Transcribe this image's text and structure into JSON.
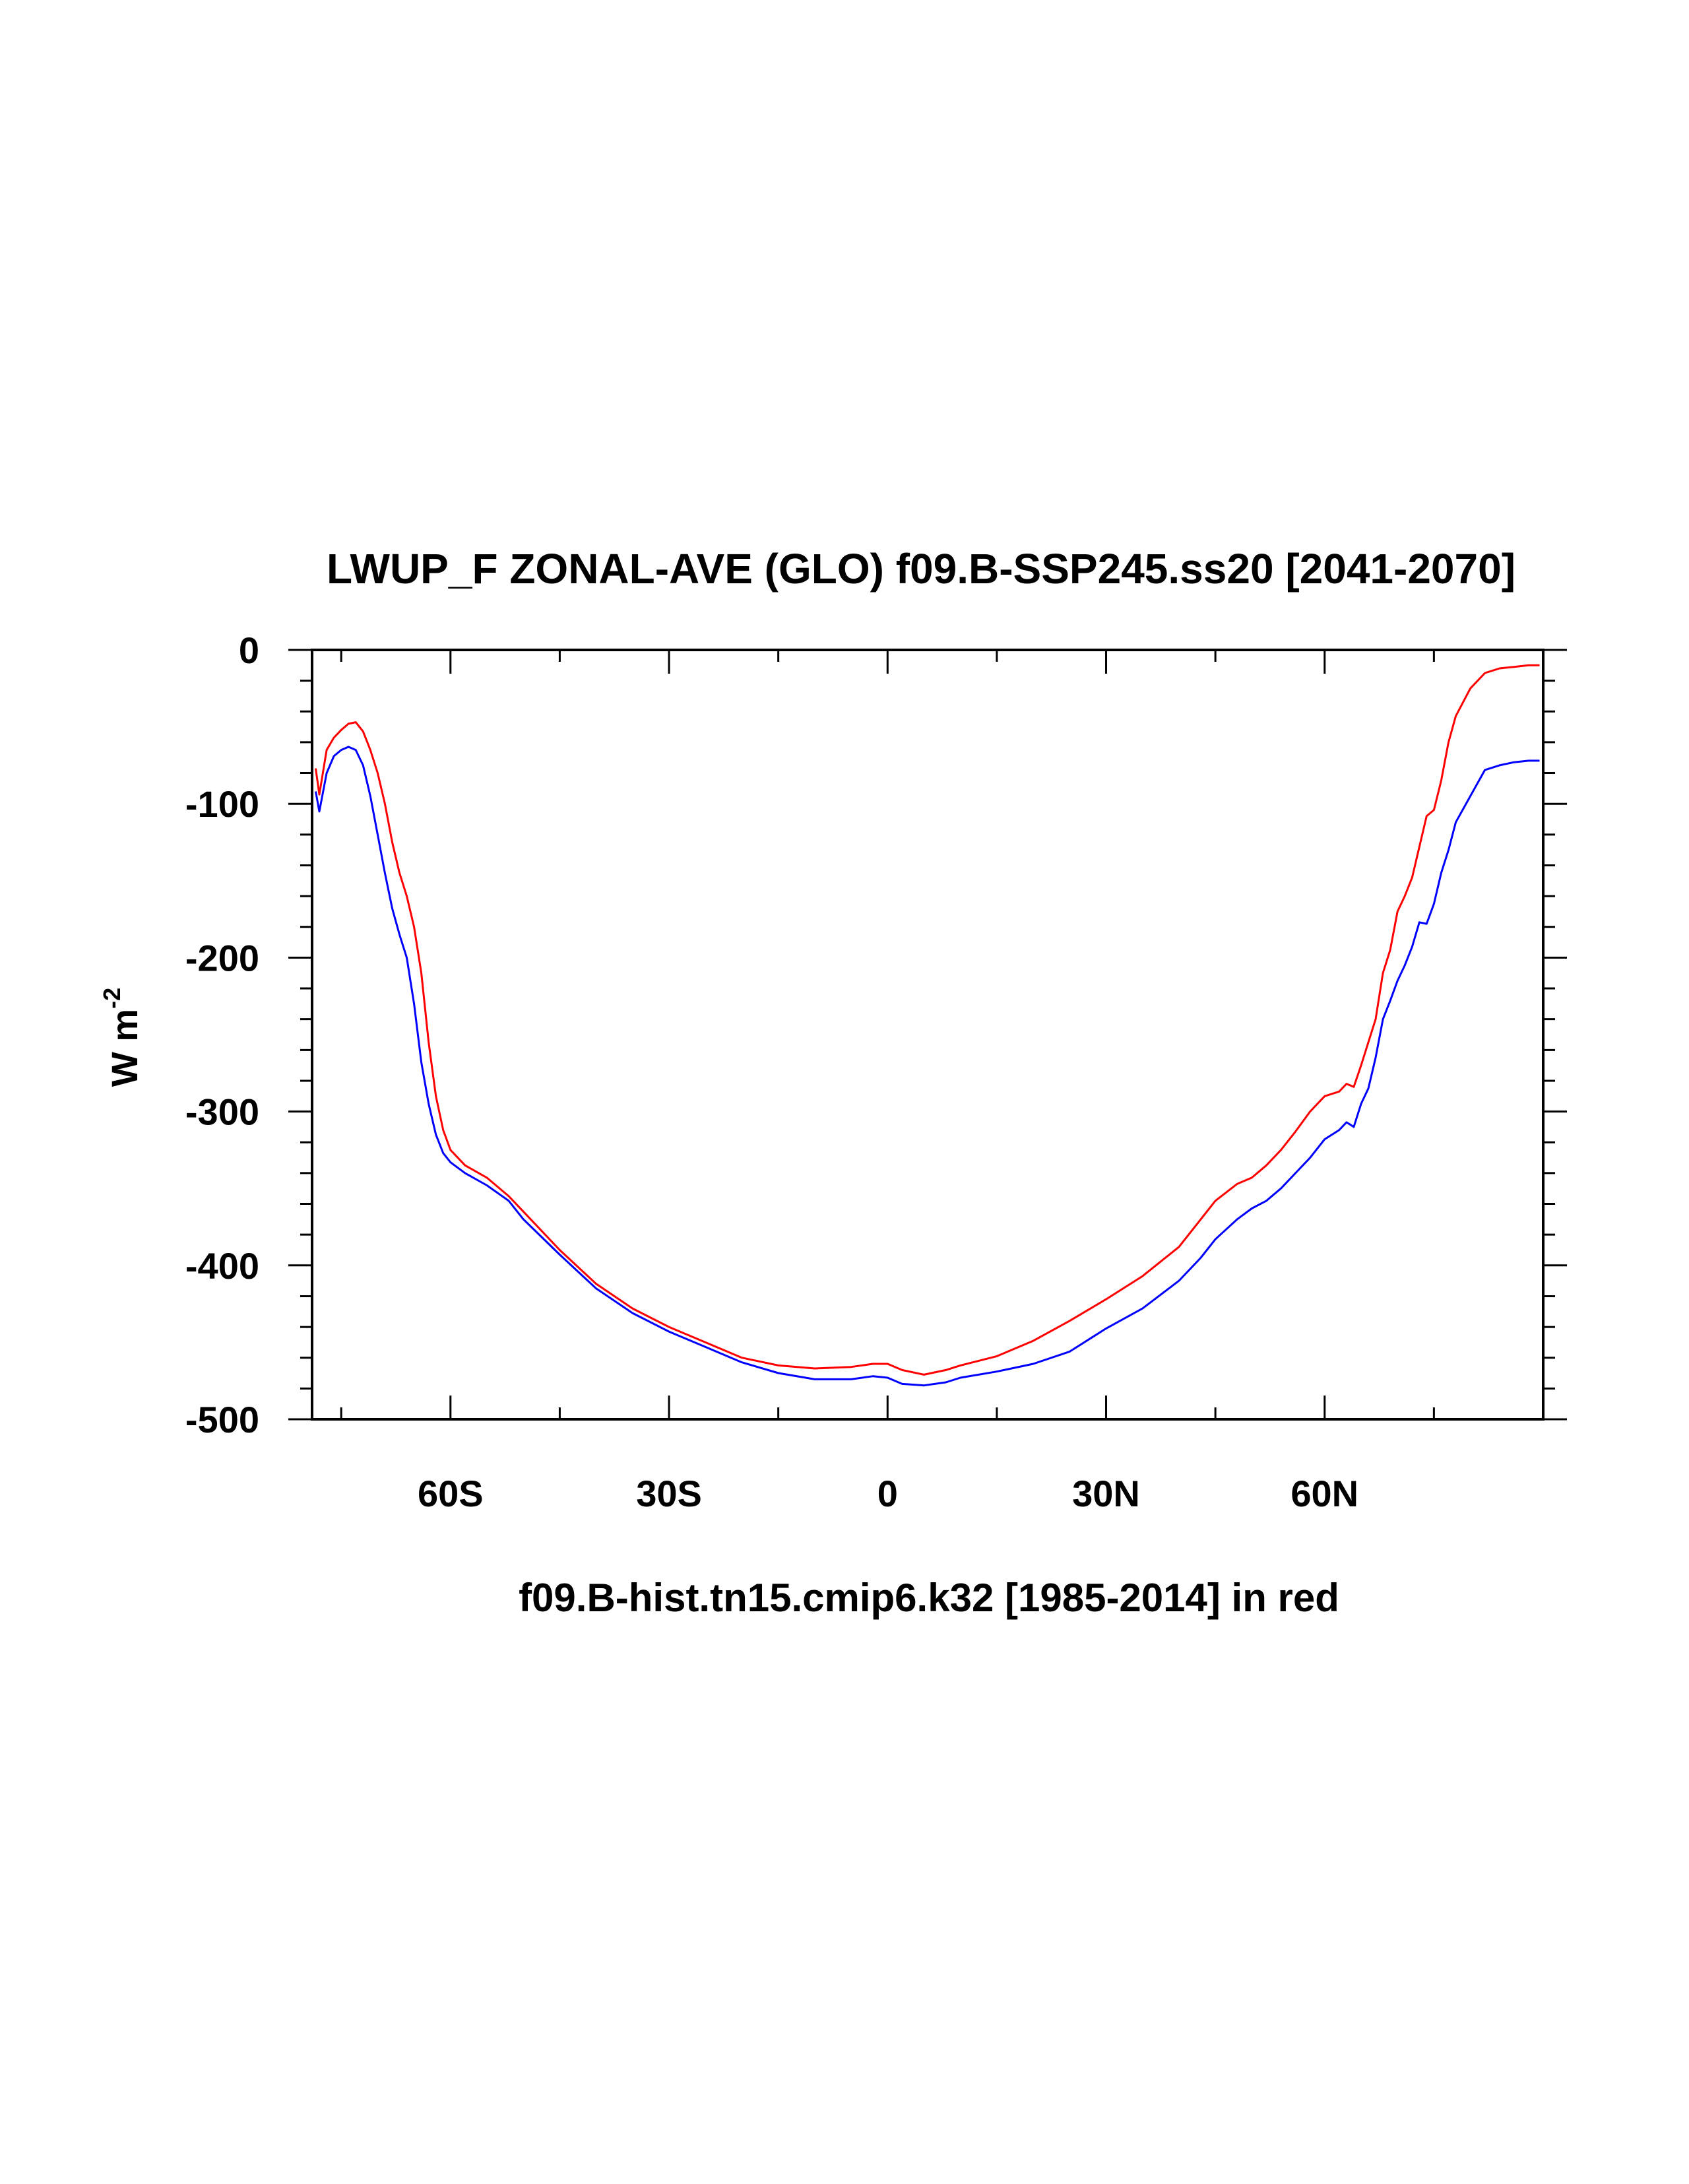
{
  "chart_data": {
    "type": "line",
    "title": "LWUP_F ZONAL-AVE (GLO) f09.B-SSP245.ss20 [2041-2070]",
    "xlabel": "f09.B-hist.tn15.cmip6.k32 [1985-2014] in red",
    "ylabel": "W m",
    "ylabel_superscript": "-2",
    "xlim": [
      -79,
      90
    ],
    "ylim": [
      -500,
      0
    ],
    "x_ticks": [
      {
        "value": -60,
        "label": "60S"
      },
      {
        "value": -30,
        "label": "30S"
      },
      {
        "value": 0,
        "label": "0"
      },
      {
        "value": 30,
        "label": "30N"
      },
      {
        "value": 60,
        "label": "60N"
      }
    ],
    "y_ticks": [
      {
        "value": 0,
        "label": "0"
      },
      {
        "value": -100,
        "label": "-100"
      },
      {
        "value": -200,
        "label": "-200"
      },
      {
        "value": -300,
        "label": "-300"
      },
      {
        "value": -400,
        "label": "-400"
      },
      {
        "value": -500,
        "label": "-500"
      }
    ],
    "grid": false,
    "series": [
      {
        "color": "#ff0000",
        "x": [
          -78.5,
          -78,
          -77,
          -76,
          -75,
          -74,
          -73,
          -72,
          -71,
          -70,
          -69,
          -68,
          -67,
          -66,
          -65,
          -64,
          -63,
          -62,
          -61,
          -60,
          -58,
          -55,
          -52,
          -50,
          -45,
          -40,
          -35,
          -30,
          -25,
          -20,
          -15,
          -10,
          -5,
          -2,
          0,
          2,
          5,
          8,
          10,
          15,
          20,
          25,
          30,
          35,
          40,
          43,
          45,
          48,
          50,
          52,
          54,
          56,
          58,
          60,
          62,
          63,
          64,
          65,
          66,
          67,
          68,
          69,
          70,
          71,
          72,
          73,
          74,
          75,
          76,
          77,
          78,
          80,
          82,
          84,
          86,
          88,
          89.5
        ],
        "y": [
          -77,
          -94,
          -65,
          -57,
          -52,
          -48,
          -47,
          -53,
          -65,
          -80,
          -100,
          -125,
          -145,
          -160,
          -180,
          -210,
          -255,
          -290,
          -312,
          -325,
          -335,
          -343,
          -355,
          -365,
          -390,
          -412,
          -428,
          -440,
          -450,
          -460,
          -465,
          -467,
          -466,
          -464,
          -464,
          -468,
          -471,
          -468,
          -465,
          -459,
          -449,
          -436,
          -422,
          -407,
          -388,
          -370,
          -358,
          -347,
          -343,
          -335,
          -325,
          -313,
          -300,
          -290,
          -287,
          -282,
          -284,
          -270,
          -255,
          -240,
          -210,
          -195,
          -170,
          -160,
          -148,
          -128,
          -108,
          -104,
          -85,
          -60,
          -43,
          -25,
          -15,
          -12,
          -11,
          -10,
          -10
        ]
      },
      {
        "color": "#0000ff",
        "x": [
          -78.5,
          -78,
          -77,
          -76,
          -75,
          -74,
          -73,
          -72,
          -71,
          -70,
          -69,
          -68,
          -67,
          -66,
          -65,
          -64,
          -63,
          -62,
          -61,
          -60,
          -58,
          -55,
          -52,
          -50,
          -45,
          -40,
          -35,
          -30,
          -25,
          -20,
          -15,
          -10,
          -5,
          -2,
          0,
          2,
          5,
          8,
          10,
          15,
          20,
          25,
          30,
          35,
          40,
          43,
          45,
          48,
          50,
          52,
          54,
          56,
          58,
          60,
          62,
          63,
          64,
          65,
          66,
          67,
          68,
          69,
          70,
          71,
          72,
          73,
          74,
          75,
          76,
          77,
          78,
          80,
          82,
          84,
          86,
          88,
          89.5
        ],
        "y": [
          -92,
          -105,
          -80,
          -69,
          -65,
          -63,
          -65,
          -75,
          -95,
          -120,
          -145,
          -168,
          -185,
          -200,
          -230,
          -268,
          -295,
          -315,
          -327,
          -333,
          -340,
          -348,
          -358,
          -370,
          -393,
          -415,
          -431,
          -443,
          -453,
          -463,
          -470,
          -474,
          -474,
          -472,
          -473,
          -477,
          -478,
          -476,
          -473,
          -469,
          -464,
          -456,
          -441,
          -428,
          -410,
          -395,
          -383,
          -370,
          -363,
          -358,
          -350,
          -340,
          -330,
          -318,
          -312,
          -307,
          -310,
          -295,
          -285,
          -265,
          -240,
          -228,
          -215,
          -205,
          -193,
          -177,
          -178,
          -165,
          -145,
          -130,
          -112,
          -95,
          -78,
          -75,
          -73,
          -72,
          -72
        ]
      }
    ]
  }
}
